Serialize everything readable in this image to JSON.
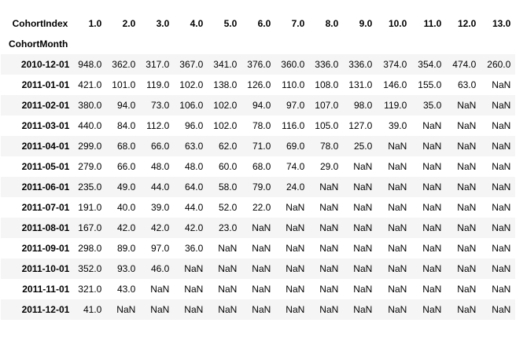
{
  "table": {
    "columns_name": "CohortIndex",
    "index_name": "CohortMonth",
    "columns": [
      "1.0",
      "2.0",
      "3.0",
      "4.0",
      "5.0",
      "6.0",
      "7.0",
      "8.0",
      "9.0",
      "10.0",
      "11.0",
      "12.0",
      "13.0"
    ],
    "rows": [
      {
        "index": "2010-12-01",
        "cells": [
          "948.0",
          "362.0",
          "317.0",
          "367.0",
          "341.0",
          "376.0",
          "360.0",
          "336.0",
          "336.0",
          "374.0",
          "354.0",
          "474.0",
          "260.0"
        ]
      },
      {
        "index": "2011-01-01",
        "cells": [
          "421.0",
          "101.0",
          "119.0",
          "102.0",
          "138.0",
          "126.0",
          "110.0",
          "108.0",
          "131.0",
          "146.0",
          "155.0",
          "63.0",
          "NaN"
        ]
      },
      {
        "index": "2011-02-01",
        "cells": [
          "380.0",
          "94.0",
          "73.0",
          "106.0",
          "102.0",
          "94.0",
          "97.0",
          "107.0",
          "98.0",
          "119.0",
          "35.0",
          "NaN",
          "NaN"
        ]
      },
      {
        "index": "2011-03-01",
        "cells": [
          "440.0",
          "84.0",
          "112.0",
          "96.0",
          "102.0",
          "78.0",
          "116.0",
          "105.0",
          "127.0",
          "39.0",
          "NaN",
          "NaN",
          "NaN"
        ]
      },
      {
        "index": "2011-04-01",
        "cells": [
          "299.0",
          "68.0",
          "66.0",
          "63.0",
          "62.0",
          "71.0",
          "69.0",
          "78.0",
          "25.0",
          "NaN",
          "NaN",
          "NaN",
          "NaN"
        ]
      },
      {
        "index": "2011-05-01",
        "cells": [
          "279.0",
          "66.0",
          "48.0",
          "48.0",
          "60.0",
          "68.0",
          "74.0",
          "29.0",
          "NaN",
          "NaN",
          "NaN",
          "NaN",
          "NaN"
        ]
      },
      {
        "index": "2011-06-01",
        "cells": [
          "235.0",
          "49.0",
          "44.0",
          "64.0",
          "58.0",
          "79.0",
          "24.0",
          "NaN",
          "NaN",
          "NaN",
          "NaN",
          "NaN",
          "NaN"
        ]
      },
      {
        "index": "2011-07-01",
        "cells": [
          "191.0",
          "40.0",
          "39.0",
          "44.0",
          "52.0",
          "22.0",
          "NaN",
          "NaN",
          "NaN",
          "NaN",
          "NaN",
          "NaN",
          "NaN"
        ]
      },
      {
        "index": "2011-08-01",
        "cells": [
          "167.0",
          "42.0",
          "42.0",
          "42.0",
          "23.0",
          "NaN",
          "NaN",
          "NaN",
          "NaN",
          "NaN",
          "NaN",
          "NaN",
          "NaN"
        ]
      },
      {
        "index": "2011-09-01",
        "cells": [
          "298.0",
          "89.0",
          "97.0",
          "36.0",
          "NaN",
          "NaN",
          "NaN",
          "NaN",
          "NaN",
          "NaN",
          "NaN",
          "NaN",
          "NaN"
        ]
      },
      {
        "index": "2011-10-01",
        "cells": [
          "352.0",
          "93.0",
          "46.0",
          "NaN",
          "NaN",
          "NaN",
          "NaN",
          "NaN",
          "NaN",
          "NaN",
          "NaN",
          "NaN",
          "NaN"
        ]
      },
      {
        "index": "2011-11-01",
        "cells": [
          "321.0",
          "43.0",
          "NaN",
          "NaN",
          "NaN",
          "NaN",
          "NaN",
          "NaN",
          "NaN",
          "NaN",
          "NaN",
          "NaN",
          "NaN"
        ]
      },
      {
        "index": "2011-12-01",
        "cells": [
          "41.0",
          "NaN",
          "NaN",
          "NaN",
          "NaN",
          "NaN",
          "NaN",
          "NaN",
          "NaN",
          "NaN",
          "NaN",
          "NaN",
          "NaN"
        ]
      }
    ]
  }
}
